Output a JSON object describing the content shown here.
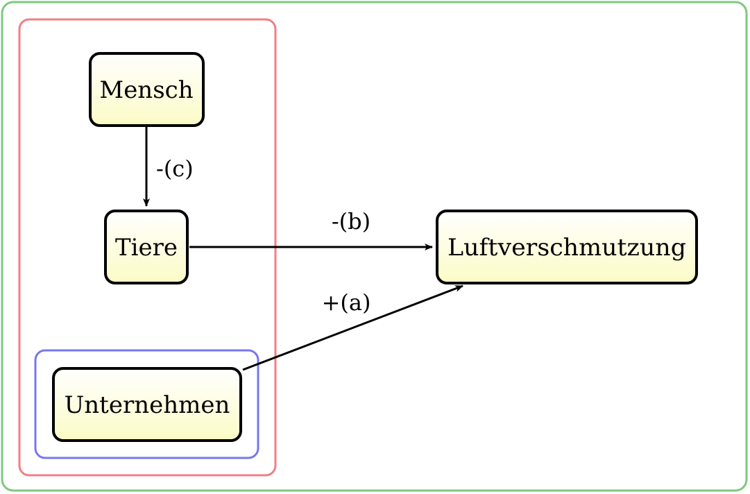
{
  "colors": {
    "outer_group": "#7dc97d",
    "red_group": "#f07f84",
    "blue_group": "#7777ee",
    "node_fill_top": "#ffffff",
    "node_fill_bottom": "#fbfbc6",
    "node_border": "#000000",
    "edge": "#000000"
  },
  "nodes": {
    "mensch": "Mensch",
    "tiere": "Tiere",
    "unternehmen": "Unternehmen",
    "luftverschmutzung": "Luftverschmutzung"
  },
  "edges": {
    "mensch_to_tiere": "-(c)",
    "tiere_to_luftverschmutzung": "-(b)",
    "unternehmen_to_luftverschmutzung": "+(a)"
  }
}
